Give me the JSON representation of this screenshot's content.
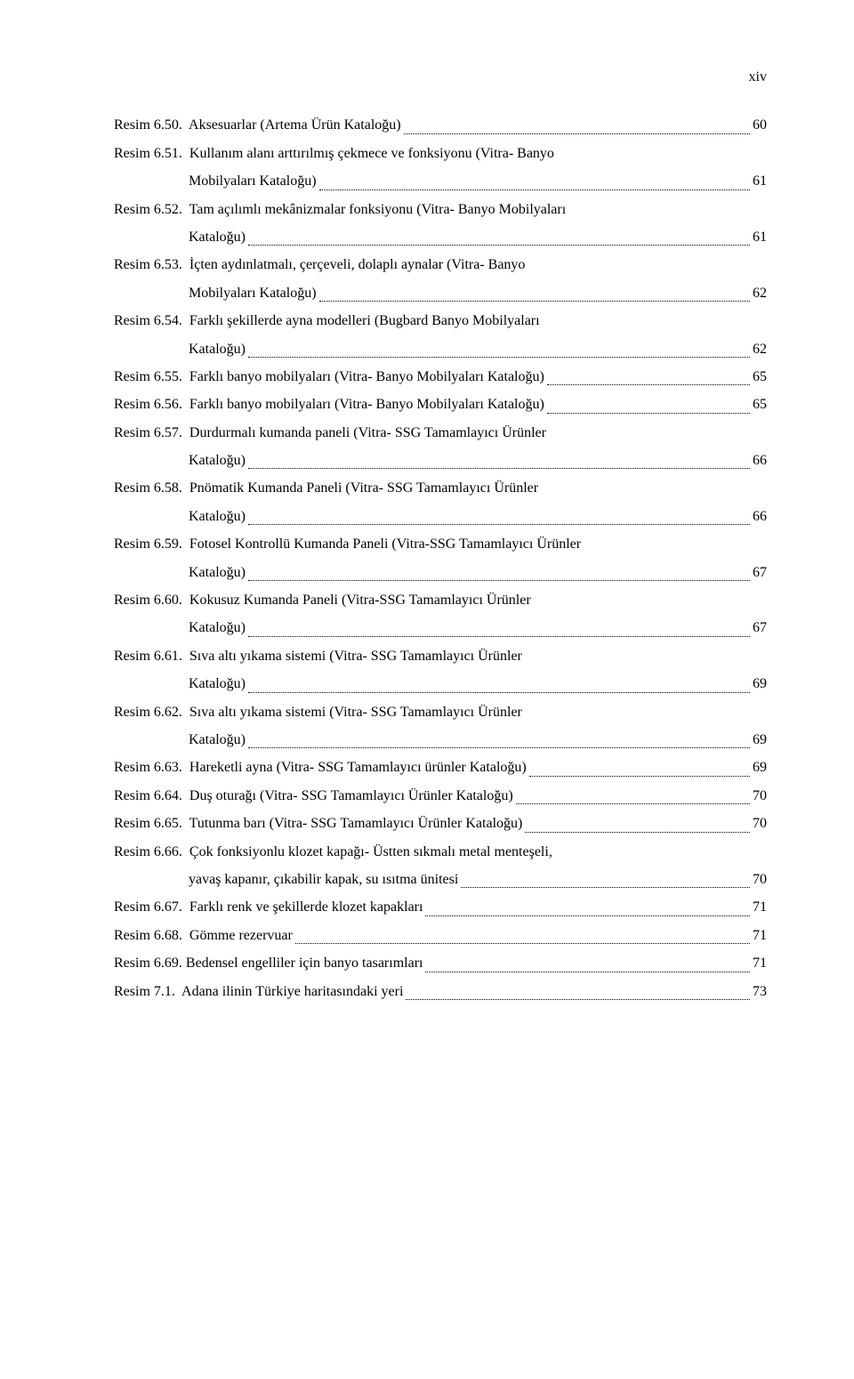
{
  "page_number_label": "xiv",
  "entries": [
    {
      "lines": [
        "Resim 6.50.  Aksesuarlar (Artema Ürün Kataloğu)"
      ],
      "page": "60"
    },
    {
      "lines": [
        "Resim 6.51.  Kullanım alanı arttırılmış çekmece ve fonksiyonu (Vitra- Banyo",
        "Mobilyaları Kataloğu)"
      ],
      "page": "61"
    },
    {
      "lines": [
        "Resim 6.52.  Tam açılımlı mekânizmalar fonksiyonu (Vitra- Banyo Mobilyaları",
        "Kataloğu)"
      ],
      "page": "61"
    },
    {
      "lines": [
        "Resim 6.53.  İçten aydınlatmalı, çerçeveli, dolaplı aynalar (Vitra- Banyo",
        "Mobilyaları Kataloğu)"
      ],
      "page": "62"
    },
    {
      "lines": [
        "Resim 6.54.  Farklı şekillerde ayna modelleri (Bugbard Banyo Mobilyaları",
        "Kataloğu)"
      ],
      "page": "62"
    },
    {
      "lines": [
        "Resim 6.55.  Farklı banyo mobilyaları (Vitra- Banyo Mobilyaları Kataloğu)"
      ],
      "page": "65"
    },
    {
      "lines": [
        "Resim 6.56.  Farklı banyo mobilyaları (Vitra- Banyo Mobilyaları Kataloğu)"
      ],
      "page": "65"
    },
    {
      "lines": [
        "Resim 6.57.  Durdurmalı kumanda paneli (Vitra- SSG Tamamlayıcı Ürünler",
        "Kataloğu)"
      ],
      "page": "66"
    },
    {
      "lines": [
        "Resim 6.58.  Pnömatik Kumanda Paneli (Vitra- SSG Tamamlayıcı Ürünler",
        "Kataloğu)"
      ],
      "page": "66"
    },
    {
      "lines": [
        "Resim 6.59.  Fotosel Kontrollü Kumanda Paneli (Vitra-SSG Tamamlayıcı Ürünler",
        "Kataloğu)"
      ],
      "page": "67"
    },
    {
      "lines": [
        "Resim 6.60.  Kokusuz Kumanda Paneli (Vitra-SSG Tamamlayıcı Ürünler",
        "Kataloğu)"
      ],
      "page": "67"
    },
    {
      "lines": [
        "Resim 6.61.  Sıva altı yıkama sistemi (Vitra- SSG Tamamlayıcı Ürünler",
        "Kataloğu)"
      ],
      "page": "69"
    },
    {
      "lines": [
        "Resim 6.62.  Sıva altı yıkama sistemi (Vitra- SSG Tamamlayıcı Ürünler",
        "Kataloğu)"
      ],
      "page": "69"
    },
    {
      "lines": [
        "Resim 6.63.  Hareketli ayna (Vitra- SSG Tamamlayıcı ürünler Kataloğu)"
      ],
      "page": "69"
    },
    {
      "lines": [
        "Resim 6.64.  Duş oturağı (Vitra- SSG Tamamlayıcı Ürünler Kataloğu)"
      ],
      "page": "70"
    },
    {
      "lines": [
        "Resim 6.65.  Tutunma barı (Vitra- SSG Tamamlayıcı Ürünler Kataloğu)"
      ],
      "page": "70"
    },
    {
      "lines": [
        "Resim 6.66.  Çok fonksiyonlu klozet kapağı- Üstten sıkmalı metal menteşeli,",
        "yavaş kapanır, çıkabilir kapak, su ısıtma ünitesi"
      ],
      "page": "70"
    },
    {
      "lines": [
        "Resim 6.67.  Farklı renk ve şekillerde klozet kapakları"
      ],
      "page": "71"
    },
    {
      "lines": [
        "Resim 6.68.  Gömme rezervuar"
      ],
      "page": "71"
    },
    {
      "lines": [
        "Resim 6.69. Bedensel engelliler için banyo tasarımları"
      ],
      "page": "71"
    },
    {
      "lines": [
        "Resim 7.1.  Adana ilinin Türkiye haritasındaki yeri"
      ],
      "page": "73"
    }
  ]
}
